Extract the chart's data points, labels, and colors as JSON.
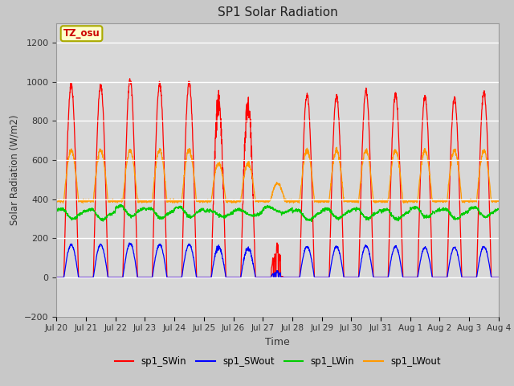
{
  "title": "SP1 Solar Radiation",
  "xlabel": "Time",
  "ylabel": "Solar Radiation (W/m2)",
  "ylim": [
    -200,
    1300
  ],
  "yticks": [
    -200,
    0,
    200,
    400,
    600,
    800,
    1000,
    1200
  ],
  "xtick_labels": [
    "Jul 20",
    "Jul 21",
    "Jul 22",
    "Jul 23",
    "Jul 24",
    "Jul 25",
    "Jul 26",
    "Jul 27",
    "Jul 28",
    "Jul 29",
    "Jul 30",
    "Jul 31",
    "Aug 1",
    "Aug 2",
    "Aug 3",
    "Aug 4"
  ],
  "annotation_text": "TZ_osu",
  "annotation_color": "#cc0000",
  "annotation_bg": "#ffffcc",
  "annotation_border": "#aaaa00",
  "colors": {
    "sp1_SWin": "#ff0000",
    "sp1_SWout": "#0000ff",
    "sp1_LWin": "#00cc00",
    "sp1_LWout": "#ff9900"
  },
  "fig_facecolor": "#c8c8c8",
  "plot_facecolor": "#d8d8d8",
  "n_days": 15,
  "points_per_day": 144,
  "SWin_peaks": [
    1000,
    1000,
    1025,
    1005,
    1010,
    960,
    950,
    200,
    950,
    940,
    970,
    950,
    940,
    930,
    960
  ],
  "SWout_peaks": [
    170,
    170,
    175,
    170,
    170,
    165,
    160,
    40,
    160,
    160,
    165,
    160,
    155,
    155,
    160
  ],
  "LWin_base": 340,
  "LWout_base": 390,
  "LWout_peak_add": 270,
  "cloudy_day": 7,
  "partial_cloudy_days": [
    5,
    6
  ]
}
